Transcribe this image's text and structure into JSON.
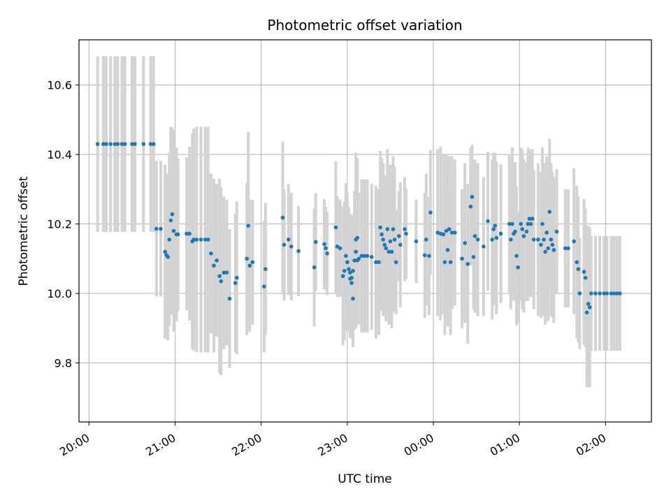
{
  "chart_data": {
    "type": "scatter",
    "title": "Photometric offset variation",
    "xlabel": "UTC time",
    "ylabel": "Photometric offset",
    "x_unit": "UTC time (HH:MM), evening through next morning",
    "xlim": [
      "19:53",
      "02:32"
    ],
    "ylim": [
      9.63,
      10.73
    ],
    "x_ticks": [
      "20:00",
      "21:00",
      "22:00",
      "23:00",
      "00:00",
      "01:00",
      "02:00"
    ],
    "y_ticks": [
      "9.8",
      "10.0",
      "10.2",
      "10.4",
      "10.6"
    ],
    "grid": true,
    "error_bars": "symmetric y error bars, light gray",
    "colors": {
      "points": "#1f77b4",
      "error_bars": "#d3d3d3",
      "grid": "#b0b0b0"
    },
    "series": [
      {
        "columns": [
          "time",
          "offset",
          "error"
        ],
        "points": [
          [
            "20:06",
            10.43,
            0.253
          ],
          [
            "20:10",
            10.43,
            0.253
          ],
          [
            "20:12",
            10.43,
            0.253
          ],
          [
            "20:15",
            10.43,
            0.253
          ],
          [
            "20:18",
            10.43,
            0.253
          ],
          [
            "20:20",
            10.43,
            0.253
          ],
          [
            "20:23",
            10.43,
            0.253
          ],
          [
            "20:25",
            10.43,
            0.253
          ],
          [
            "20:30",
            10.43,
            0.253
          ],
          [
            "20:32",
            10.43,
            0.253
          ],
          [
            "20:38",
            10.43,
            0.253
          ],
          [
            "20:43",
            10.43,
            0.253
          ],
          [
            "20:45",
            10.43,
            0.253
          ],
          [
            "20:47",
            10.186,
            0.195
          ],
          [
            "20:50",
            10.186,
            0.195
          ],
          [
            "20:53",
            10.12,
            0.25
          ],
          [
            "20:54",
            10.11,
            0.23
          ],
          [
            "20:55",
            10.105,
            0.24
          ],
          [
            "20:56",
            10.155,
            0.25
          ],
          [
            "20:57",
            10.21,
            0.27
          ],
          [
            "20:58",
            10.228,
            0.25
          ],
          [
            "20:59",
            10.18,
            0.29
          ],
          [
            "21:01",
            10.17,
            0.25
          ],
          [
            "21:02",
            10.17,
            0.22
          ],
          [
            "21:08",
            10.172,
            0.22
          ],
          [
            "21:10",
            10.172,
            0.25
          ],
          [
            "21:12",
            10.15,
            0.31
          ],
          [
            "21:13",
            10.155,
            0.32
          ],
          [
            "21:15",
            10.155,
            0.325
          ],
          [
            "21:18",
            10.155,
            0.325
          ],
          [
            "21:21",
            10.155,
            0.325
          ],
          [
            "21:23",
            10.155,
            0.325
          ],
          [
            "21:25",
            10.115,
            0.23
          ],
          [
            "21:27",
            10.08,
            0.25
          ],
          [
            "21:29",
            10.095,
            0.22
          ],
          [
            "21:31",
            10.05,
            0.28
          ],
          [
            "21:32",
            10.035,
            0.27
          ],
          [
            "21:34",
            10.06,
            0.22
          ],
          [
            "21:36",
            10.06,
            0.21
          ],
          [
            "21:38",
            9.985,
            0.2
          ],
          [
            "21:42",
            10.03,
            0.2
          ],
          [
            "21:43",
            10.045,
            0.22
          ],
          [
            "21:50",
            10.1,
            0.22
          ],
          [
            "21:51",
            10.195,
            0.27
          ],
          [
            "21:52",
            10.08,
            0.19
          ],
          [
            "21:54",
            10.09,
            0.18
          ],
          [
            "22:02",
            10.02,
            0.19
          ],
          [
            "22:03",
            10.07,
            0.19
          ],
          [
            "22:15",
            10.218,
            0.22
          ],
          [
            "22:16",
            10.14,
            0.16
          ],
          [
            "22:19",
            10.155,
            0.16
          ],
          [
            "22:21",
            10.135,
            0.155
          ],
          [
            "22:26",
            10.122,
            0.13
          ],
          [
            "22:37",
            10.075,
            0.17
          ],
          [
            "22:38",
            10.148,
            0.14
          ],
          [
            "22:44",
            10.142,
            0.13
          ],
          [
            "22:45",
            10.13,
            0.12
          ],
          [
            "22:46",
            10.115,
            0.12
          ],
          [
            "22:52",
            10.19,
            0.19
          ],
          [
            "22:53",
            10.135,
            0.145
          ],
          [
            "22:55",
            10.13,
            0.14
          ],
          [
            "22:57",
            10.05,
            0.2
          ],
          [
            "22:58",
            10.065,
            0.2
          ],
          [
            "22:59",
            10.108,
            0.21
          ],
          [
            "23:00",
            10.09,
            0.2
          ],
          [
            "23:01",
            10.07,
            0.18
          ],
          [
            "23:02",
            10.06,
            0.17
          ],
          [
            "23:02",
            10.042,
            0.17
          ],
          [
            "23:03",
            10.03,
            0.16
          ],
          [
            "23:03",
            10.045,
            0.17
          ],
          [
            "23:04",
            9.985,
            0.14
          ],
          [
            "23:04",
            10.065,
            0.16
          ],
          [
            "23:05",
            10.095,
            0.2
          ],
          [
            "23:06",
            10.12,
            0.22
          ],
          [
            "23:06",
            10.155,
            0.25
          ],
          [
            "23:07",
            10.095,
            0.18
          ],
          [
            "23:07",
            10.16,
            0.23
          ],
          [
            "23:08",
            10.1,
            0.19
          ],
          [
            "23:10",
            10.108,
            0.22
          ],
          [
            "23:12",
            10.108,
            0.22
          ],
          [
            "23:14",
            10.108,
            0.22
          ],
          [
            "23:17",
            10.105,
            0.21
          ],
          [
            "23:20",
            10.09,
            0.22
          ],
          [
            "23:22",
            10.09,
            0.21
          ],
          [
            "23:23",
            10.19,
            0.22
          ],
          [
            "23:24",
            10.17,
            0.22
          ],
          [
            "23:25",
            10.155,
            0.22
          ],
          [
            "23:26",
            10.14,
            0.2
          ],
          [
            "23:27",
            10.13,
            0.21
          ],
          [
            "23:28",
            10.185,
            0.23
          ],
          [
            "23:29",
            10.12,
            0.21
          ],
          [
            "23:30",
            10.15,
            0.22
          ],
          [
            "23:31",
            10.12,
            0.22
          ],
          [
            "23:32",
            10.185,
            0.21
          ],
          [
            "23:33",
            10.155,
            0.21
          ],
          [
            "23:34",
            10.09,
            0.15
          ],
          [
            "23:36",
            10.165,
            0.13
          ],
          [
            "23:37",
            10.14,
            0.18
          ],
          [
            "23:40",
            10.185,
            0.15
          ],
          [
            "23:41",
            10.172,
            0.13
          ],
          [
            "23:48",
            10.15,
            0.12
          ],
          [
            "23:54",
            10.11,
            0.18
          ],
          [
            "23:55",
            10.155,
            0.19
          ],
          [
            "23:57",
            10.108,
            0.17
          ],
          [
            "23:58",
            10.233,
            0.18
          ],
          [
            "00:03",
            10.175,
            0.24
          ],
          [
            "00:05",
            10.172,
            0.25
          ],
          [
            "00:07",
            10.17,
            0.23
          ],
          [
            "00:08",
            10.09,
            0.21
          ],
          [
            "00:09",
            10.18,
            0.22
          ],
          [
            "00:10",
            10.125,
            0.22
          ],
          [
            "00:11",
            10.185,
            0.21
          ],
          [
            "00:12",
            10.09,
            0.21
          ],
          [
            "00:13",
            10.175,
            0.22
          ],
          [
            "00:15",
            10.175,
            0.21
          ],
          [
            "00:20",
            10.1,
            0.2
          ],
          [
            "00:22",
            10.145,
            0.23
          ],
          [
            "00:24",
            10.085,
            0.23
          ],
          [
            "00:26",
            10.25,
            0.17
          ],
          [
            "00:27",
            10.278,
            0.15
          ],
          [
            "00:28",
            10.105,
            0.15
          ],
          [
            "00:29",
            10.165,
            0.22
          ],
          [
            "00:31",
            10.155,
            0.22
          ],
          [
            "00:35",
            10.135,
            0.2
          ],
          [
            "00:38",
            10.208,
            0.2
          ],
          [
            "00:41",
            10.155,
            0.23
          ],
          [
            "00:42",
            10.185,
            0.22
          ],
          [
            "00:43",
            10.195,
            0.21
          ],
          [
            "00:44",
            10.16,
            0.22
          ],
          [
            "00:47",
            10.172,
            0.2
          ],
          [
            "00:53",
            10.2,
            0.2
          ],
          [
            "00:54",
            10.155,
            0.2
          ],
          [
            "00:55",
            10.2,
            0.22
          ],
          [
            "00:56",
            10.172,
            0.18
          ],
          [
            "00:57",
            10.178,
            0.2
          ],
          [
            "00:58",
            10.108,
            0.2
          ],
          [
            "00:59",
            10.075,
            0.16
          ],
          [
            "01:01",
            10.2,
            0.22
          ],
          [
            "01:02",
            10.185,
            0.23
          ],
          [
            "01:03",
            10.165,
            0.22
          ],
          [
            "01:05",
            10.178,
            0.2
          ],
          [
            "01:06",
            10.2,
            0.22
          ],
          [
            "01:07",
            10.215,
            0.2
          ],
          [
            "01:08",
            10.2,
            0.21
          ],
          [
            "01:09",
            10.215,
            0.2
          ],
          [
            "01:10",
            10.155,
            0.2
          ],
          [
            "01:13",
            10.155,
            0.22
          ],
          [
            "01:15",
            10.14,
            0.21
          ],
          [
            "01:16",
            10.2,
            0.22
          ],
          [
            "01:17",
            10.155,
            0.22
          ],
          [
            "01:18",
            10.12,
            0.21
          ],
          [
            "01:19",
            10.175,
            0.22
          ],
          [
            "01:20",
            10.13,
            0.21
          ],
          [
            "01:21",
            10.235,
            0.21
          ],
          [
            "01:22",
            10.155,
            0.22
          ],
          [
            "01:23",
            10.14,
            0.21
          ],
          [
            "01:24",
            10.125,
            0.21
          ],
          [
            "01:26",
            10.178,
            0.18
          ],
          [
            "01:32",
            10.13,
            0.17
          ],
          [
            "01:34",
            10.13,
            0.17
          ],
          [
            "01:38",
            10.15,
            0.21
          ],
          [
            "01:40",
            10.09,
            0.22
          ],
          [
            "01:41",
            10.07,
            0.21
          ],
          [
            "01:42",
            10.0,
            0.16
          ],
          [
            "01:45",
            10.062,
            0.21
          ],
          [
            "01:46",
            10.045,
            0.2
          ],
          [
            "01:47",
            9.945,
            0.215
          ],
          [
            "01:48",
            9.97,
            0.225
          ],
          [
            "01:49",
            9.96,
            0.23
          ],
          [
            "01:50",
            10.0,
            0.165
          ],
          [
            "01:53",
            10.0,
            0.165
          ],
          [
            "01:56",
            10.0,
            0.165
          ],
          [
            "01:59",
            10.0,
            0.165
          ],
          [
            "02:01",
            10.0,
            0.165
          ],
          [
            "02:04",
            10.0,
            0.165
          ],
          [
            "02:06",
            10.0,
            0.165
          ],
          [
            "02:08",
            10.0,
            0.165
          ],
          [
            "02:10",
            10.0,
            0.165
          ]
        ]
      }
    ]
  }
}
